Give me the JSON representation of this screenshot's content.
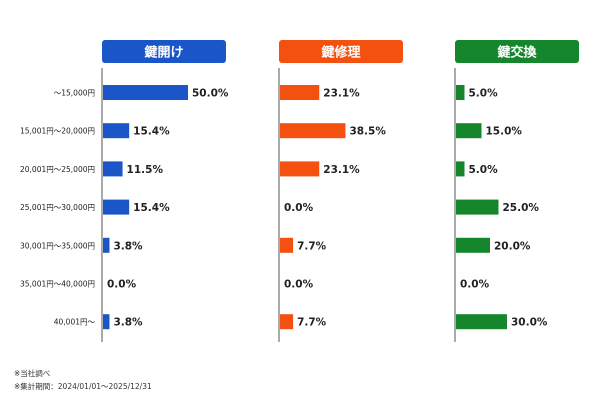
{
  "chart_data": {
    "type": "bar",
    "categories": [
      "～15,000円",
      "15,001円～20,000円",
      "20,001円～25,000円",
      "25,001円～30,000円",
      "30,001円～35,000円",
      "35,001円～40,000円",
      "40,001円～"
    ],
    "series": [
      {
        "name": "鍵開け",
        "color": "#1a56c8",
        "values": [
          50.0,
          15.4,
          11.5,
          15.4,
          3.8,
          0.0,
          3.8
        ]
      },
      {
        "name": "鍵修理",
        "color": "#f4500f",
        "values": [
          23.1,
          38.5,
          23.1,
          0.0,
          7.7,
          0.0,
          7.7
        ]
      },
      {
        "name": "鍵交換",
        "color": "#15862b",
        "values": [
          5.0,
          15.0,
          5.0,
          25.0,
          20.0,
          0.0,
          30.0
        ]
      }
    ],
    "value_format": "percent_1dp",
    "orientation": "horizontal",
    "grid": false
  },
  "footnotes": [
    "※当社調べ",
    "※集計期間：2024/01/01～2025/12/31"
  ]
}
